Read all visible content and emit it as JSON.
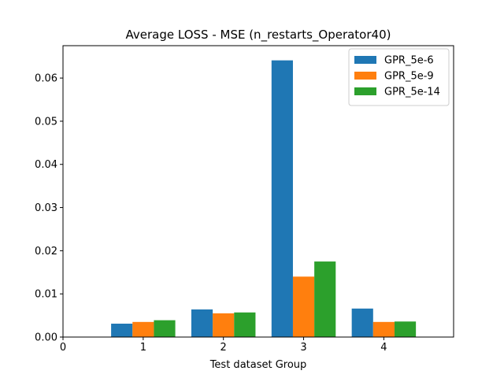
{
  "chart_data": {
    "type": "bar",
    "title": "Average LOSS - MSE (n_restarts_Operator40)",
    "xlabel": "Test dataset Group",
    "ylabel": "",
    "x_ticks": [
      "0",
      "1",
      "2",
      "3",
      "4"
    ],
    "categories": [
      "1",
      "2",
      "3",
      "4"
    ],
    "xlim": [
      0,
      4.87
    ],
    "ylim": [
      0,
      0.0675
    ],
    "y_ticks": [
      0.0,
      0.01,
      0.02,
      0.03,
      0.04,
      0.05,
      0.06
    ],
    "y_tick_labels": [
      "0.00",
      "0.01",
      "0.02",
      "0.03",
      "0.04",
      "0.05",
      "0.06"
    ],
    "grid": false,
    "legend_position": "top-right",
    "series": [
      {
        "name": "GPR_5e-6",
        "color": "#1f77b4",
        "values": [
          0.0031,
          0.0064,
          0.0641,
          0.0066
        ]
      },
      {
        "name": "GPR_5e-9",
        "color": "#ff7f0e",
        "values": [
          0.0035,
          0.0055,
          0.014,
          0.0035
        ]
      },
      {
        "name": "GPR_5e-14",
        "color": "#2ca02c",
        "values": [
          0.0039,
          0.0057,
          0.0175,
          0.0036
        ]
      }
    ]
  }
}
